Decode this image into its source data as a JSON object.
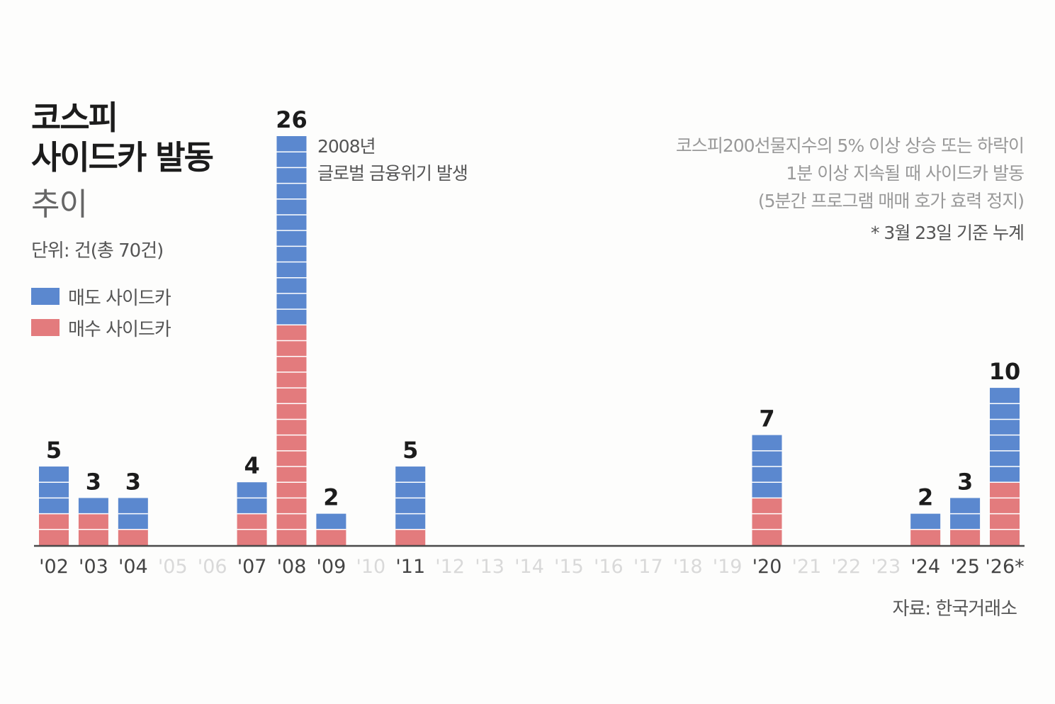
{
  "title_lines": [
    "코스피",
    "사이드카 발동"
  ],
  "subtitle": "추이",
  "unit": "단위: 건(총 70건)",
  "legend": [
    {
      "label": "매도 사이드카",
      "color": "#5b88cf"
    },
    {
      "label": "매수 사이드카",
      "color": "#e37b7d"
    }
  ],
  "annotation_lines": [
    "2008년",
    "글로벌 금융위기 발생"
  ],
  "note_lines": [
    "코스피200선물지수의 5% 이상 상승 또는 하락이",
    "1분 이상 지속될 때 사이드카 발동",
    "(5분간 프로그램 매매 호가 효력 정지)"
  ],
  "basis_note": "* 3월 23일 기준 누계",
  "source": "자료: 한국거래소",
  "colors": {
    "sell": "#5b88cf",
    "buy": "#e37b7d",
    "axis": "#4a4a4a",
    "tick_active": "#444444",
    "tick_inactive": "#d9d9d9"
  },
  "chart_data": {
    "type": "bar",
    "stacked": true,
    "categories": [
      "'02",
      "'03",
      "'04",
      "'05",
      "'06",
      "'07",
      "'08",
      "'09",
      "'10",
      "'11",
      "'12",
      "'13",
      "'14",
      "'15",
      "'16",
      "'17",
      "'18",
      "'19",
      "'20",
      "'21",
      "'22",
      "'23",
      "'24",
      "'25",
      "'26*"
    ],
    "series": [
      {
        "name": "매수 사이드카",
        "values": [
          2,
          2,
          1,
          0,
          0,
          2,
          14,
          1,
          0,
          1,
          0,
          0,
          0,
          0,
          0,
          0,
          0,
          0,
          3,
          0,
          0,
          0,
          1,
          1,
          4
        ]
      },
      {
        "name": "매도 사이드카",
        "values": [
          3,
          1,
          2,
          0,
          0,
          2,
          12,
          1,
          0,
          4,
          0,
          0,
          0,
          0,
          0,
          0,
          0,
          0,
          4,
          0,
          0,
          0,
          1,
          2,
          6
        ]
      }
    ],
    "totals": [
      5,
      3,
      3,
      0,
      0,
      4,
      26,
      2,
      0,
      5,
      0,
      0,
      0,
      0,
      0,
      0,
      0,
      0,
      7,
      0,
      0,
      0,
      2,
      3,
      10
    ],
    "ylim": [
      0,
      26
    ],
    "grid": false,
    "legend_position": "left"
  }
}
